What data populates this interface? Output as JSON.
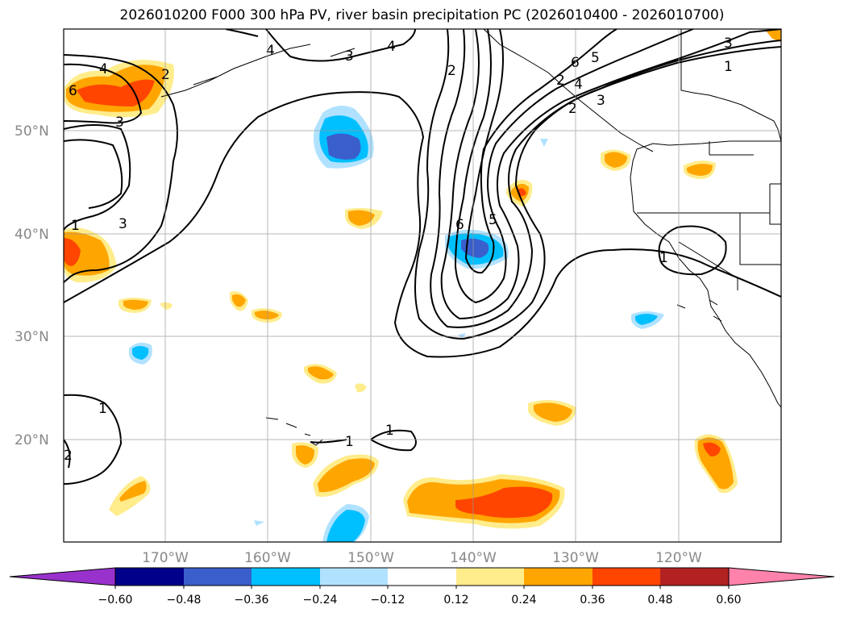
{
  "title": "2026010200 F000 300 hPa PV, river basin precipitation PC (2026010400 - 2026010700)",
  "map": {
    "lon_labels": [
      "170°W",
      "160°W",
      "150°W",
      "140°W",
      "130°W",
      "120°W"
    ],
    "lat_labels": [
      "50°N",
      "40°N",
      "30°N",
      "20°N"
    ],
    "contour_labels": [
      "4",
      "4",
      "6",
      "2",
      "3",
      "4",
      "2",
      "3",
      "3",
      "1",
      "3",
      "5",
      "6",
      "6",
      "5",
      "2",
      "2",
      "4",
      "3",
      "1",
      "1",
      "2",
      "1",
      "1",
      "1"
    ]
  },
  "colorbar": {
    "tick_labels": [
      "−0.60",
      "−0.48",
      "−0.36",
      "−0.24",
      "−0.12",
      "0.12",
      "0.24",
      "0.36",
      "0.48",
      "0.60"
    ],
    "colors": [
      "#9932CC",
      "#00008B",
      "#3A5FCD",
      "#00BFFF",
      "#B0E2FF",
      "#FFFFFF",
      "#FFEC8B",
      "#FFA500",
      "#FF4500",
      "#B22222",
      "#FF82AB"
    ]
  }
}
